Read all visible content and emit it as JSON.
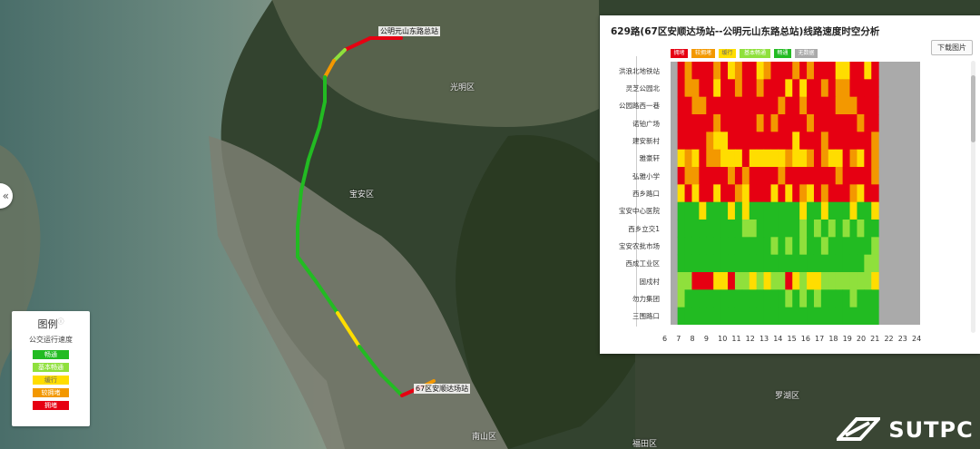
{
  "map": {
    "districts": [
      {
        "name": "光明区",
        "pos": "upper-center"
      },
      {
        "name": "宝安区",
        "pos": "center"
      },
      {
        "name": "罗湖区",
        "pos": "lower-right"
      },
      {
        "name": "南山区",
        "pos": "bottom"
      },
      {
        "name": "福田区",
        "pos": "bottom"
      }
    ],
    "terminal_start": "公明元山东路总站",
    "terminal_end": "67区安顺达场站",
    "colors": {
      "congested": "#e60012",
      "slow": "#f39800",
      "crawl": "#ffdd00",
      "basic_smooth": "#8fe03c",
      "smooth": "#22bb22",
      "no_data": "#aaaaaa"
    }
  },
  "legend": {
    "title": "图例",
    "subtitle": "公交运行速度",
    "items": [
      {
        "label": "畅通",
        "color": "#22bb22"
      },
      {
        "label": "基本畅通",
        "color": "#8fe03c"
      },
      {
        "label": "缓行",
        "color": "#ffdd00"
      },
      {
        "label": "较拥堵",
        "color": "#f39800"
      },
      {
        "label": "拥堵",
        "color": "#e60012"
      }
    ]
  },
  "panel": {
    "title": "629路(67区安顺达场站--公明元山东路总站)线路速度时空分析",
    "download_label": "下载图片",
    "legend": [
      {
        "label": "拥堵",
        "color": "#e60012"
      },
      {
        "label": "较拥堵",
        "color": "#f39800"
      },
      {
        "label": "缓行",
        "color": "#ffdd00"
      },
      {
        "label": "基本畅通",
        "color": "#8fe03c"
      },
      {
        "label": "畅通",
        "color": "#22bb22"
      },
      {
        "label": "无数据",
        "color": "#aaaaaa"
      }
    ]
  },
  "chart_data": {
    "type": "heatmap",
    "title": "629路(67区安顺达场站--公明元山东路总站)线路速度时空分析",
    "x_ticks": [
      "6",
      "7",
      "8",
      "9",
      "10",
      "11",
      "12",
      "13",
      "14",
      "15",
      "16",
      "17",
      "18",
      "19",
      "20",
      "21",
      "22",
      "23",
      "24"
    ],
    "xlim": [
      6,
      24
    ],
    "y_stops": [
      "洪浪北地铁站",
      "灵芝公园北",
      "公园路西一巷",
      "诺铂广场",
      "建安新村",
      "雅豪轩",
      "弘雅小学",
      "西乡路口",
      "宝安中心医院",
      "西乡立交1",
      "宝安农批市场",
      "西成工业区",
      "固戍村",
      "勿力集团",
      "三围路口"
    ],
    "service_hours": [
      6.5,
      21.0
    ],
    "row_profiles": [
      {
        "stop": "洪浪北地铁站",
        "dominant": [
          "congested",
          "slow",
          "crawl"
        ]
      },
      {
        "stop": "灵芝公园北",
        "dominant": [
          "congested",
          "slow",
          "crawl",
          "basic_smooth"
        ]
      },
      {
        "stop": "公园路西一巷",
        "dominant": [
          "congested",
          "slow"
        ]
      },
      {
        "stop": "诺铂广场",
        "dominant": [
          "congested"
        ]
      },
      {
        "stop": "建安新村",
        "dominant": [
          "congested",
          "slow",
          "crawl"
        ]
      },
      {
        "stop": "雅豪轩",
        "dominant": [
          "crawl",
          "slow",
          "congested"
        ]
      },
      {
        "stop": "弘雅小学",
        "dominant": [
          "congested"
        ]
      },
      {
        "stop": "西乡路口",
        "dominant": [
          "congested",
          "crawl",
          "slow"
        ]
      },
      {
        "stop": "宝安中心医院",
        "dominant": [
          "smooth",
          "crawl"
        ]
      },
      {
        "stop": "西乡立交1",
        "dominant": [
          "smooth",
          "basic_smooth"
        ]
      },
      {
        "stop": "宝安农批市场",
        "dominant": [
          "smooth"
        ]
      },
      {
        "stop": "西成工业区",
        "dominant": [
          "smooth"
        ]
      },
      {
        "stop": "固戍村",
        "dominant": [
          "basic_smooth",
          "crawl",
          "congested"
        ]
      },
      {
        "stop": "勿力集团",
        "dominant": [
          "smooth",
          "basic_smooth"
        ]
      },
      {
        "stop": "三围路口",
        "dominant": [
          "smooth"
        ]
      }
    ]
  },
  "watermark": "SUTPC"
}
